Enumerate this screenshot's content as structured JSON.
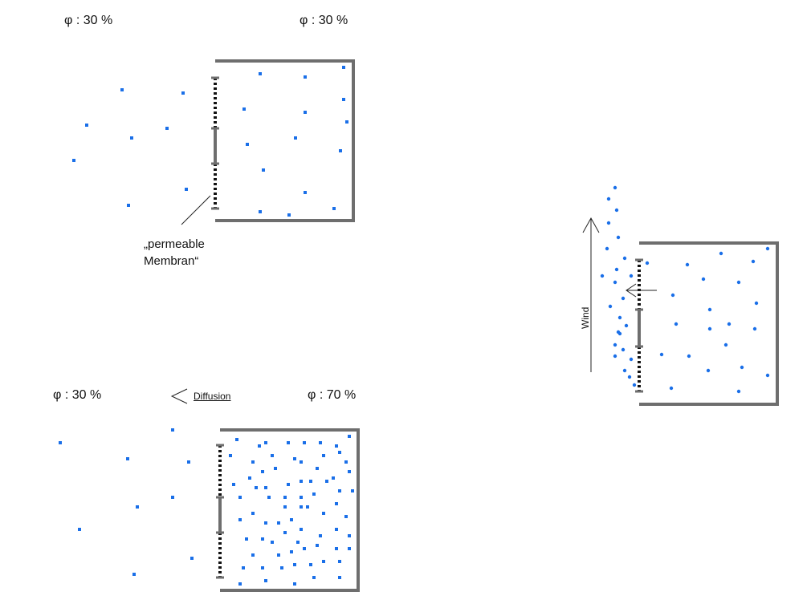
{
  "colors": {
    "wall": "#6e6e6e",
    "membrane": "#111111",
    "particle": "#1a6fe8",
    "text": "#111111"
  },
  "panel_top_left": {
    "outside_humidity": "φ :  30 %",
    "inside_humidity": "φ :  30 %",
    "membrane_label_line1": "„permeable",
    "membrane_label_line2": "Membran“"
  },
  "panel_bottom_left": {
    "outside_humidity": "φ :  30 %",
    "diffusion_label": "Diffusion",
    "inside_humidity": "φ :  70 %"
  },
  "panel_right": {
    "wind_label": "Wind"
  }
}
